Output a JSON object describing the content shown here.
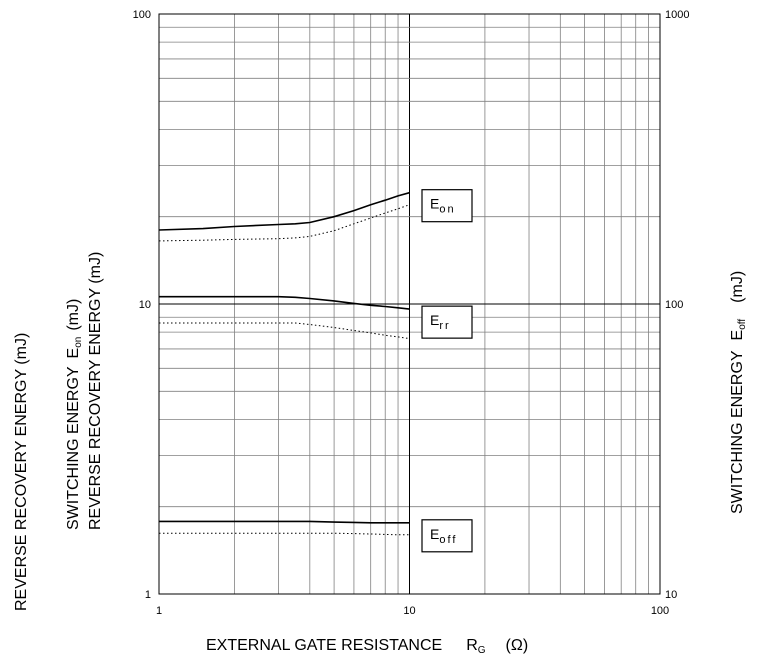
{
  "chart_data": {
    "type": "line",
    "x_scale": "log",
    "y_scale": "log",
    "grid": true,
    "xlabel": {
      "main": "EXTERNAL GATE RESISTANCE",
      "symbol": "R",
      "symbol_sub": "G",
      "unit": "(Ω)"
    },
    "ylabel_left_1": "REVERSE RECOVERY ENERGY   (mJ)",
    "ylabel_left_2": {
      "main": "SWITCHING ENERGY",
      "symbol": "E",
      "symbol_sub": "on",
      "unit": "(mJ)"
    },
    "ylabel_left_3": "REVERSE RECOVERY ENERGY   (mJ)",
    "ylabel_right": {
      "main": "SWITCHING ENERGY",
      "symbol": "E",
      "symbol_sub": "off",
      "unit": "(mJ)"
    },
    "xlim": [
      1,
      100
    ],
    "ylim_left": [
      1,
      100
    ],
    "ylim_right": [
      10,
      1000
    ],
    "x_ticks": [
      "1",
      "10",
      "100"
    ],
    "y_ticks_left": [
      "1",
      "10",
      "100"
    ],
    "y_ticks_right": [
      "10",
      "100",
      "1000"
    ],
    "x": [
      1,
      1.5,
      2,
      3,
      3.5,
      4,
      5,
      6,
      7,
      8,
      9,
      10
    ],
    "series": [
      {
        "name": "Eon",
        "label_main": "E",
        "label_sub": "on",
        "axis": "left",
        "style": "solid",
        "values": [
          18,
          18.2,
          18.5,
          18.8,
          18.9,
          19.1,
          20,
          21,
          22,
          22.8,
          23.6,
          24.2
        ]
      },
      {
        "name": "Eon",
        "axis": "left",
        "style": "dotted",
        "values": [
          16.5,
          16.6,
          16.7,
          16.8,
          16.9,
          17.1,
          17.9,
          18.9,
          19.8,
          20.6,
          21.3,
          22
        ]
      },
      {
        "name": "Err",
        "label_main": "E",
        "label_sub": "rr",
        "axis": "left",
        "style": "solid",
        "values": [
          10.6,
          10.6,
          10.6,
          10.6,
          10.55,
          10.45,
          10.25,
          10.05,
          9.9,
          9.8,
          9.7,
          9.6
        ]
      },
      {
        "name": "Err",
        "axis": "left",
        "style": "dotted",
        "values": [
          8.6,
          8.6,
          8.6,
          8.6,
          8.6,
          8.5,
          8.3,
          8.1,
          7.95,
          7.8,
          7.7,
          7.6
        ]
      },
      {
        "name": "Eoff",
        "label_main": "E",
        "label_sub": "off",
        "axis": "right",
        "style": "solid",
        "values": [
          17.8,
          17.8,
          17.8,
          17.8,
          17.8,
          17.8,
          17.7,
          17.65,
          17.6,
          17.6,
          17.6,
          17.6
        ]
      },
      {
        "name": "Eoff",
        "axis": "right",
        "style": "dotted",
        "values": [
          16.2,
          16.2,
          16.2,
          16.2,
          16.2,
          16.2,
          16.2,
          16.15,
          16.1,
          16.05,
          16.0,
          16.0
        ]
      }
    ],
    "line_color": "#000000",
    "grid_color": "#808080"
  }
}
